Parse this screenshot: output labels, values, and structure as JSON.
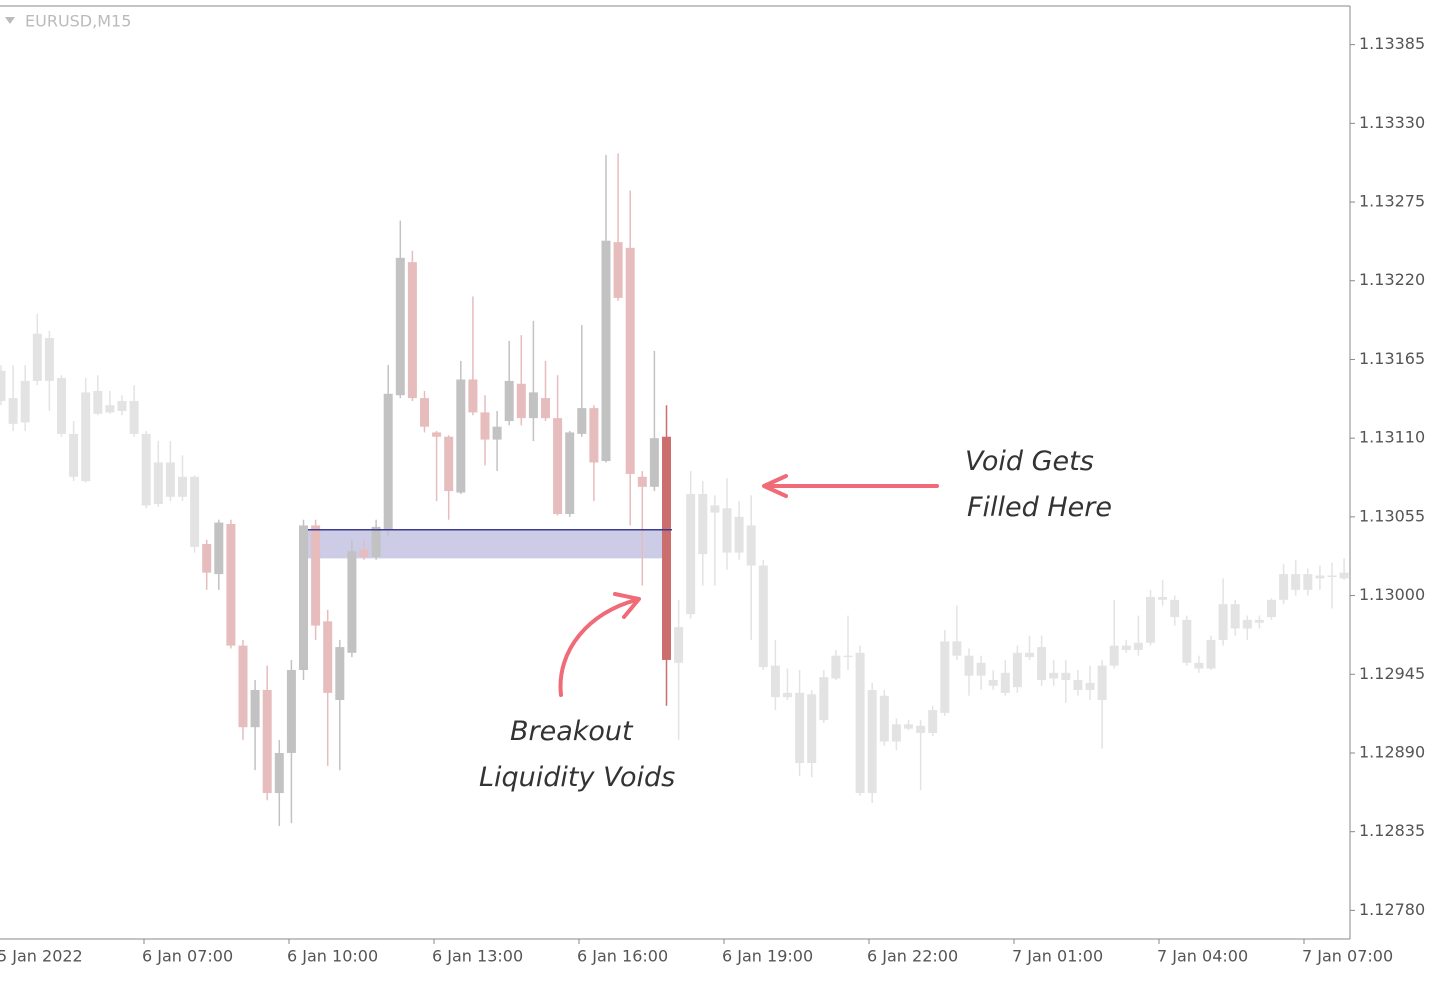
{
  "chart_data": {
    "type": "candlestick",
    "symbol": "EURUSD,M15",
    "ylim": [
      1.1276,
      1.13412
    ],
    "yticks": [
      1.13385,
      {
        "value": 1.1333,
        "label": "1.13330"
      },
      1.13275,
      {
        "value": 1.1322,
        "label": "1.13220"
      },
      1.13165,
      {
        "value": 1.1311,
        "label": "1.13110"
      },
      1.13055,
      {
        "value": 1.13,
        "label": "1.13000"
      },
      1.12945,
      {
        "value": 1.1289,
        "label": "1.12890"
      },
      1.12835,
      {
        "value": 1.1278,
        "label": "1.12780"
      }
    ],
    "xtick_labels": [
      "5 Jan 2022",
      "6 Jan 07:00",
      "6 Jan 10:00",
      "6 Jan 13:00",
      "6 Jan 16:00",
      "6 Jan 19:00",
      "6 Jan 22:00",
      "7 Jan 01:00",
      "7 Jan 04:00",
      "7 Jan 07:00"
    ],
    "zone": {
      "top": 1.13046,
      "bottom": 1.13026,
      "fill": "#c6c6e4",
      "line_color": "#3b3b8f"
    },
    "annotations": [
      {
        "lines": [
          "Void Gets",
          "Filled Here"
        ],
        "color": "#f06a78"
      },
      {
        "lines": [
          "Breakout",
          "Liquidity Voids"
        ],
        "color": "#f06a78"
      }
    ],
    "series": [
      {
        "up_color": "#e3e3e3",
        "down_color": "#e3e3e3",
        "open": [
          1.13136,
          1.13138,
          1.13121,
          1.1315,
          1.1318,
          1.13152,
          1.13113,
          1.1308,
          1.13143,
          1.13128,
          1.13129,
          1.13136,
          1.13113,
          1.13064,
          1.13093,
          1.13069,
          1.13083
        ],
        "high": [
          1.13161,
          1.13161,
          1.13161,
          1.13197,
          1.13185,
          1.13154,
          1.13122,
          1.13152,
          1.13154,
          1.13143,
          1.1314,
          1.13147,
          1.13115,
          1.13108,
          1.13108,
          1.13098,
          1.13084
        ],
        "low": [
          1.13133,
          1.13115,
          1.13115,
          1.13147,
          1.13129,
          1.13111,
          1.1308,
          1.13079,
          1.13126,
          1.13127,
          1.13126,
          1.13111,
          1.13061,
          1.13062,
          1.13066,
          1.13066,
          1.1303
        ],
        "close": [
          1.13157,
          1.1312,
          1.1315,
          1.13183,
          1.1315,
          1.13113,
          1.13083,
          1.13142,
          1.13127,
          1.13133,
          1.13136,
          1.13113,
          1.13063,
          1.13093,
          1.13069,
          1.13083,
          1.13034
        ]
      },
      {
        "up_color": "#c2c2c2",
        "down_color": "#e7bcbc",
        "open": [
          1.13036,
          1.13015,
          1.1305,
          1.12965,
          1.12908,
          1.12934,
          1.12862,
          1.1289,
          1.12948,
          1.13049,
          1.12982,
          1.12927,
          1.1296,
          1.13032,
          1.13027,
          1.13046,
          1.1314,
          1.13233,
          1.13138,
          1.13114,
          1.13111,
          1.13072,
          1.13151,
          1.13128,
          1.13109,
          1.13122,
          1.13148,
          1.13124,
          1.13138,
          1.13124,
          1.13057,
          1.13113,
          1.13131,
          1.13094,
          1.13247,
          1.13243,
          1.13083,
          1.13076
        ],
        "high": [
          1.13039,
          1.13053,
          1.13053,
          1.12969,
          1.12941,
          1.12951,
          1.12899,
          1.12955,
          1.13053,
          1.13053,
          1.1299,
          1.12969,
          1.13039,
          1.13039,
          1.13053,
          1.13161,
          1.13262,
          1.13241,
          1.13143,
          1.13115,
          1.13112,
          1.13164,
          1.13209,
          1.1314,
          1.13129,
          1.13178,
          1.13182,
          1.13192,
          1.13164,
          1.13154,
          1.13115,
          1.13189,
          1.13133,
          1.13308,
          1.13309,
          1.13283,
          1.13087,
          1.13171
        ],
        "low": [
          1.13004,
          1.13004,
          1.12963,
          1.12899,
          1.12878,
          1.12857,
          1.12839,
          1.12841,
          1.12941,
          1.12969,
          1.12881,
          1.12878,
          1.12957,
          1.13025,
          1.13025,
          1.13042,
          1.13138,
          1.13136,
          1.13114,
          1.13066,
          1.13053,
          1.13071,
          1.13126,
          1.13091,
          1.13087,
          1.13119,
          1.13119,
          1.13108,
          1.13122,
          1.13056,
          1.13055,
          1.13111,
          1.13066,
          1.13093,
          1.13206,
          1.13049,
          1.13007,
          1.13073
        ],
        "close": [
          1.13016,
          1.13051,
          1.12965,
          1.12908,
          1.12934,
          1.12862,
          1.1289,
          1.12948,
          1.13049,
          1.12979,
          1.12932,
          1.12964,
          1.13031,
          1.13027,
          1.13048,
          1.13141,
          1.13236,
          1.13138,
          1.13118,
          1.13111,
          1.13073,
          1.13151,
          1.13128,
          1.13109,
          1.13118,
          1.1315,
          1.13124,
          1.13142,
          1.13124,
          1.13057,
          1.13114,
          1.13131,
          1.13093,
          1.13248,
          1.13208,
          1.13085,
          1.13076,
          1.1311
        ]
      },
      {
        "up_color": "#cd6e6e",
        "down_color": "#cd6e6e",
        "open": [
          1.13111
        ],
        "high": [
          1.13133
        ],
        "low": [
          1.12923
        ],
        "close": [
          1.12955
        ]
      },
      {
        "up_color": "#e3e3e3",
        "down_color": "#e3e3e3",
        "open": [
          1.12953,
          1.12987,
          1.13071,
          1.13063,
          1.13061,
          1.13055,
          1.13049,
          1.13021,
          1.12951,
          1.12929,
          1.12932,
          1.12883,
          1.12913,
          1.12942,
          1.12957,
          1.1296,
          1.12862,
          1.1293,
          1.12898,
          1.12907,
          1.12909,
          1.12904,
          1.12918,
          1.12968,
          1.12958,
          1.12944,
          1.12941,
          1.12932,
          1.12936,
          1.1296,
          1.12964,
          1.12942,
          1.12946,
          1.12941,
          1.12934,
          1.12927,
          1.12951,
          1.12965,
          1.12962,
          1.12967,
          1.12999,
          1.12997,
          1.12983,
          1.12953,
          1.12949,
          1.12969,
          1.12994,
          1.12977,
          1.12983,
          1.12985,
          1.12997,
          1.13004,
          1.13015,
          1.13012,
          1.13013,
          1.13012
        ],
        "high": [
          1.12997,
          1.13087,
          1.1308,
          1.1307,
          1.13082,
          1.13066,
          1.1307,
          1.13025,
          1.12969,
          1.12949,
          1.12948,
          1.12934,
          1.12948,
          1.12962,
          1.12986,
          1.12965,
          1.12939,
          1.12934,
          1.12914,
          1.12913,
          1.12913,
          1.12923,
          1.12976,
          1.12993,
          1.12963,
          1.12958,
          1.12948,
          1.12955,
          1.12965,
          1.12972,
          1.12972,
          1.12955,
          1.12955,
          1.12948,
          1.12951,
          1.12955,
          1.12997,
          1.12969,
          1.12986,
          1.13004,
          1.13011,
          1.13,
          1.12986,
          1.12958,
          1.12972,
          1.13012,
          1.12997,
          1.12986,
          1.12986,
          1.12998,
          1.13022,
          1.13025,
          1.13019,
          1.13021,
          1.13023,
          1.13026
        ],
        "low": [
          1.12899,
          1.12984,
          1.13007,
          1.13007,
          1.13018,
          1.13025,
          1.12969,
          1.12948,
          1.1292,
          1.12927,
          1.12874,
          1.12873,
          1.12911,
          1.12941,
          1.12948,
          1.1286,
          1.12855,
          1.12895,
          1.12892,
          1.12906,
          1.12864,
          1.12902,
          1.12916,
          1.12955,
          1.1293,
          1.12934,
          1.12934,
          1.1293,
          1.12932,
          1.12955,
          1.12937,
          1.12937,
          1.12925,
          1.1293,
          1.12927,
          1.12893,
          1.12949,
          1.1296,
          1.12958,
          1.12965,
          1.12993,
          1.12979,
          1.12951,
          1.12946,
          1.12948,
          1.12965,
          1.12972,
          1.12969,
          1.12977,
          1.12983,
          1.12994,
          1.13,
          1.13,
          1.13004,
          1.12991,
          1.13011
        ],
        "close": [
          1.12978,
          1.13071,
          1.13029,
          1.13058,
          1.1303,
          1.1303,
          1.13021,
          1.1295,
          1.12929,
          1.12932,
          1.12883,
          1.12931,
          1.12943,
          1.12958,
          1.12958,
          1.12862,
          1.12934,
          1.12898,
          1.1291,
          1.1291,
          1.12904,
          1.1292,
          1.12968,
          1.12958,
          1.12944,
          1.12953,
          1.12937,
          1.12946,
          1.1296,
          1.12957,
          1.12941,
          1.12946,
          1.12941,
          1.12934,
          1.12939,
          1.12951,
          1.12965,
          1.12962,
          1.12967,
          1.12999,
          1.12997,
          1.12985,
          1.12953,
          1.12949,
          1.12969,
          1.12994,
          1.12977,
          1.12983,
          1.12981,
          1.12997,
          1.13015,
          1.13015,
          1.13004,
          1.13014,
          1.13014,
          1.13016
        ]
      }
    ]
  }
}
